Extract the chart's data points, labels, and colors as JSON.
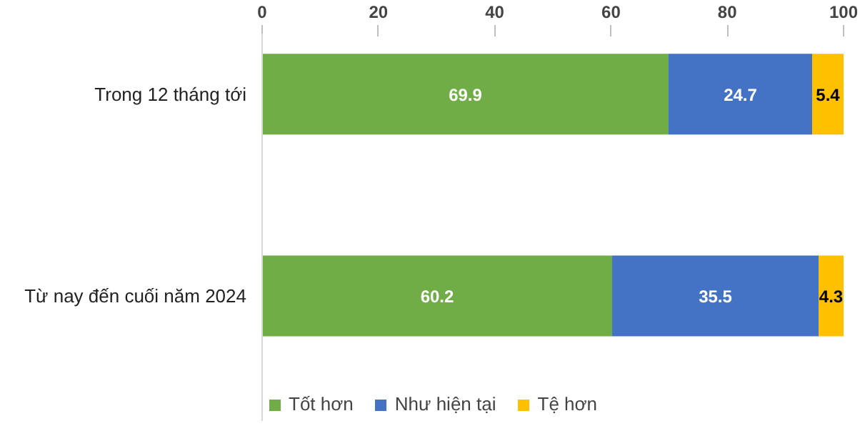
{
  "chart_data": {
    "type": "bar",
    "orientation": "horizontal",
    "stacked": true,
    "categories": [
      "Trong 12 tháng tới",
      "Từ nay đến cuối năm 2024"
    ],
    "series": [
      {
        "name": "Tốt hơn",
        "color": "#70ad47",
        "values": [
          69.9,
          60.2
        ]
      },
      {
        "name": "Như hiện tại",
        "color": "#4472c4",
        "values": [
          24.7,
          35.5
        ]
      },
      {
        "name": "Tệ hơn",
        "color": "#ffc000",
        "values": [
          5.4,
          4.3
        ]
      }
    ],
    "xlim": [
      0,
      100
    ],
    "xticks": [
      0,
      20,
      40,
      60,
      80,
      100
    ],
    "data_labels": true,
    "grid": false,
    "legend": "bottom"
  }
}
